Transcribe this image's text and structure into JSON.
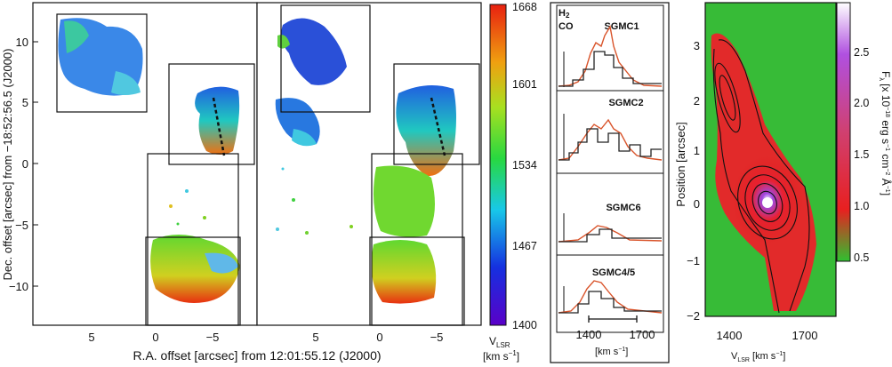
{
  "figure": {
    "left": {
      "ylabel": "Dec. offset [arcsec] from −18:52:56.5 (J2000)",
      "xlabel": "R.A. offset [arcsec] from 12:01:55.12 (J2000)",
      "yticks": [
        "10",
        "5",
        "0",
        "−5",
        "−10"
      ],
      "xticks_panel1": [
        "5",
        "0",
        "−5"
      ],
      "xticks_panel2": [
        "5",
        "0",
        "−5"
      ]
    },
    "colorbar": {
      "ticks": [
        "1668",
        "1601",
        "1534",
        "1467",
        "1400"
      ],
      "label_line1": "V",
      "label_sub": "LSR",
      "label_line2": "[km s",
      "label_sup": "−1",
      "label_close": "]",
      "range": [
        1400,
        1668
      ]
    },
    "spectra": {
      "legend_h2": "H",
      "legend_h2_sub": "2",
      "legend_co": "CO",
      "labels": [
        "SGMC1",
        "SGMC2",
        "SGMC6",
        "SGMC4/5"
      ],
      "xticks": [
        "1400",
        "1700"
      ],
      "xunit": "[km s",
      "xunit_sup": "−1",
      "xunit_close": "]"
    },
    "pv": {
      "ylabel": "Position [arcsec]",
      "xlabel_main": "V",
      "xlabel_sub": "LSR",
      "xlabel_unit": " [km s",
      "xlabel_sup": "−1",
      "xlabel_close": "]",
      "yticks": [
        "3",
        "2",
        "1",
        "0",
        "−1",
        "−2"
      ],
      "xticks": [
        "1400",
        "1700"
      ],
      "cbar_ticks": [
        "2.5",
        "2.0",
        "1.5",
        "1.0",
        "0.5"
      ],
      "cbar_label_a": "F",
      "cbar_label_a_sub": "λ",
      "cbar_label_b": " [x 10",
      "cbar_label_b_sup": "−18",
      "cbar_label_c": " erg s",
      "cbar_label_c_sup": "−1",
      "cbar_label_d": " cm",
      "cbar_label_d_sup": "−2",
      "cbar_label_e": " Å",
      "cbar_label_e_sup": "−1",
      "cbar_label_f": "]"
    },
    "colors": {
      "co": "#d9542b",
      "h2": "#222222",
      "bg_green": "#3bc23b"
    }
  }
}
